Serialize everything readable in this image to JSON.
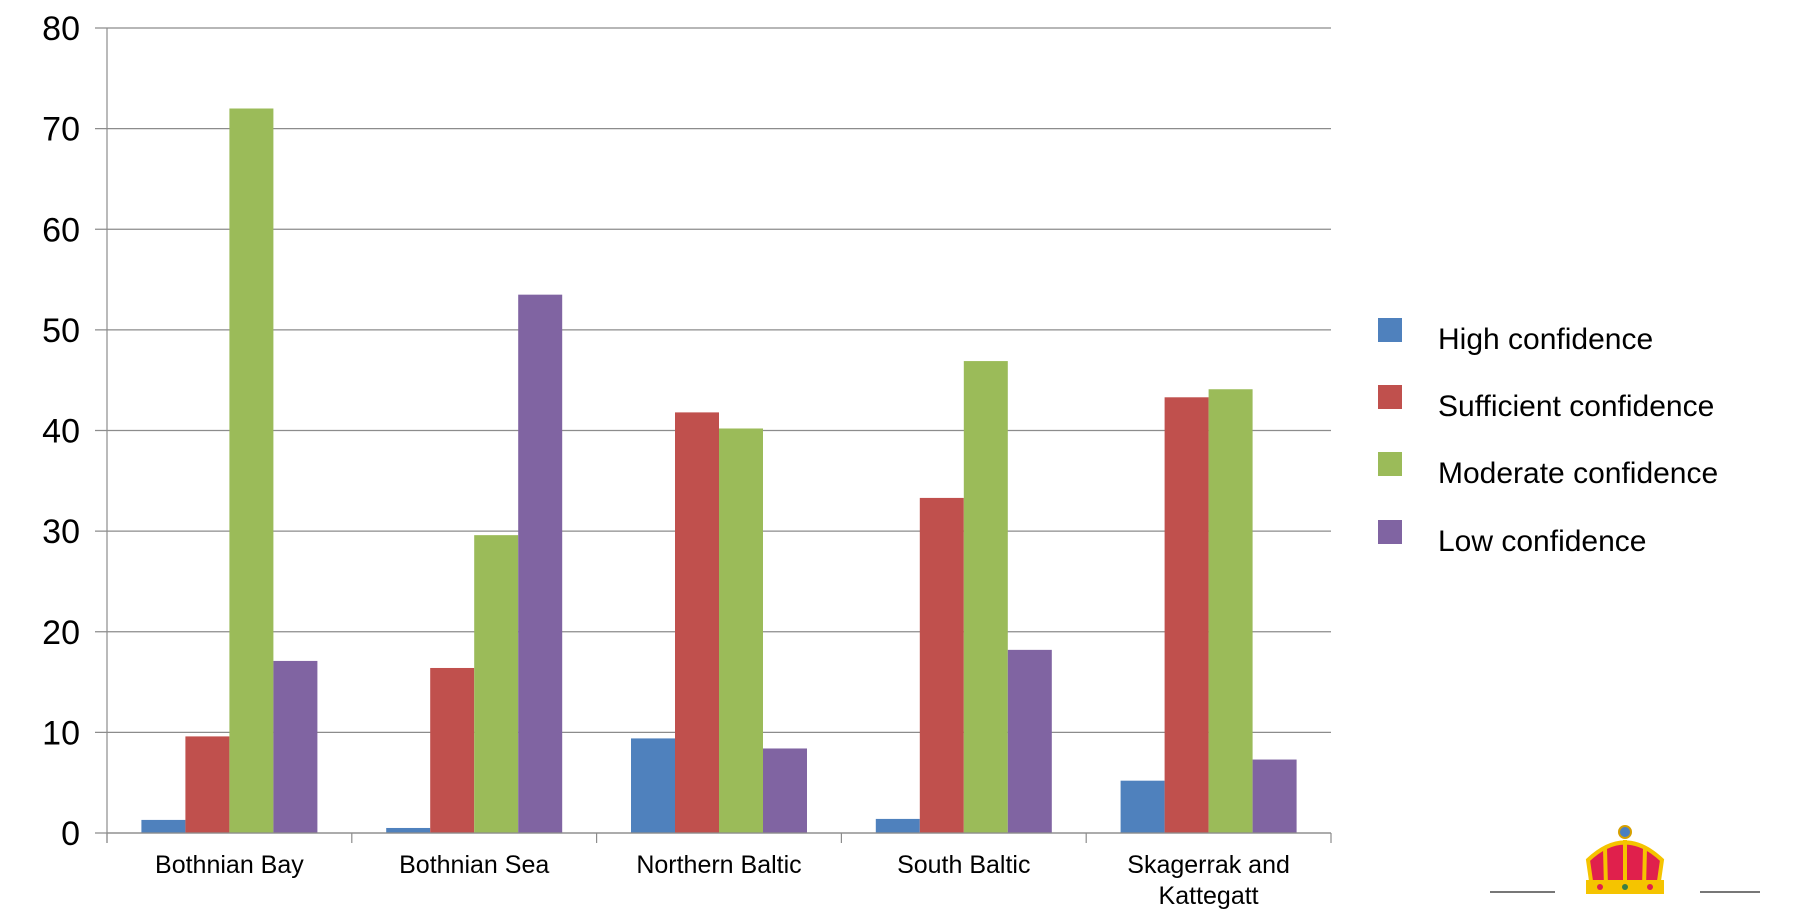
{
  "chart_data": {
    "type": "bar",
    "categories": [
      "Bothnian Bay",
      "Bothnian Sea",
      "Northern Baltic",
      "South Baltic",
      "Skagerrak and Kattegatt"
    ],
    "category_lines": [
      [
        "Bothnian Bay"
      ],
      [
        "Bothnian Sea"
      ],
      [
        "Northern Baltic"
      ],
      [
        "South Baltic"
      ],
      [
        "Skagerrak and",
        "Kattegatt"
      ]
    ],
    "series": [
      {
        "name": "High confidence",
        "color": "#4f81bd",
        "values": [
          1.3,
          0.5,
          9.4,
          1.4,
          5.2
        ]
      },
      {
        "name": "Sufficient confidence",
        "color": "#c0504d",
        "values": [
          9.6,
          16.4,
          41.8,
          33.3,
          43.3
        ]
      },
      {
        "name": "Moderate confidence",
        "color": "#9bbb59",
        "values": [
          72,
          29.6,
          40.2,
          46.9,
          44.1
        ]
      },
      {
        "name": "Low confidence",
        "color": "#8064a2",
        "values": [
          17.1,
          53.5,
          8.4,
          18.2,
          7.3
        ]
      }
    ],
    "ylim": [
      0,
      80
    ],
    "yticks": [
      0,
      10,
      20,
      30,
      40,
      50,
      60,
      70,
      80
    ],
    "grid": true,
    "legend": "right",
    "title": "",
    "xlabel": "",
    "ylabel": ""
  },
  "logo": {
    "name": "crown-logo-icon"
  }
}
